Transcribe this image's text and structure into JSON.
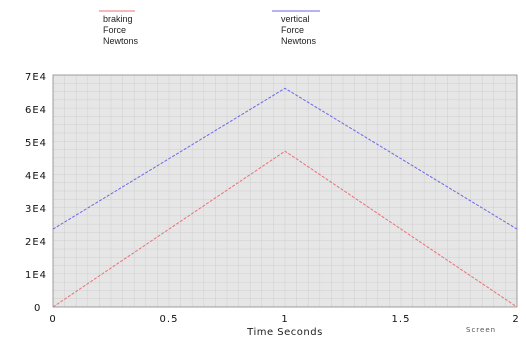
{
  "chart_data": {
    "type": "line",
    "title": "",
    "xlabel": "Time Seconds",
    "ylabel": "",
    "x": [
      0,
      1,
      2
    ],
    "xlim": [
      0,
      2
    ],
    "ylim": [
      0,
      70000
    ],
    "x_ticks": [
      "0",
      "0.5",
      "1",
      "1.5",
      "2"
    ],
    "y_ticks": [
      "0",
      "1E4",
      "2E4",
      "3E4",
      "4E4",
      "5E4",
      "6E4",
      "7E4"
    ],
    "corner_label": "Screen",
    "grid": true,
    "legend_position": "top",
    "series": [
      {
        "name": "braking Force Newtons",
        "legend_lines": [
          "braking",
          "Force",
          "Newtons"
        ],
        "color": "#e8707a",
        "values": [
          0,
          47000,
          0
        ]
      },
      {
        "name": "vertical Force Newtons",
        "legend_lines": [
          "vertical",
          "Force",
          "Newtons"
        ],
        "color": "#6a6ae6",
        "values": [
          23500,
          66000,
          23500
        ]
      }
    ],
    "plot_background": "#e6e6e6",
    "grid_color": "#cfcfcf"
  }
}
